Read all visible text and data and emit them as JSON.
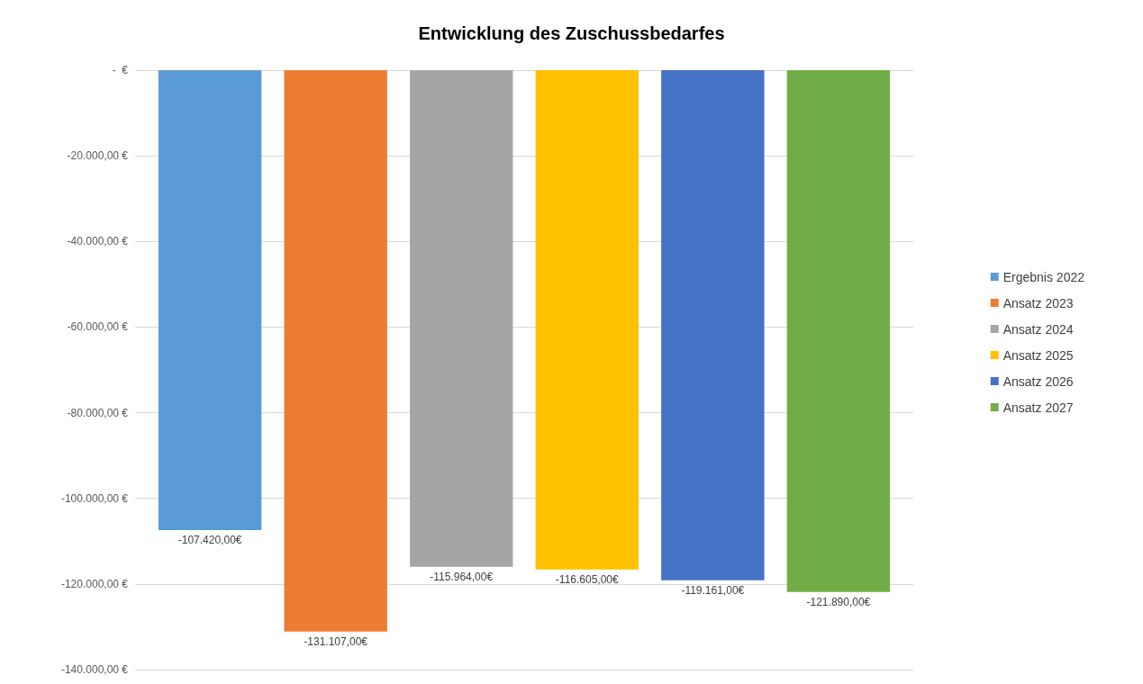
{
  "chart_data": {
    "type": "bar",
    "title": "Entwicklung des Zuschussbedarfes",
    "categories": [
      null
    ],
    "series": [
      {
        "name": "Ergebnis 2022",
        "color": "#5b9bd5",
        "values": [
          -107420
        ],
        "value_labels": [
          "-107.420,00€"
        ]
      },
      {
        "name": "Ansatz 2023",
        "color": "#ed7d31",
        "values": [
          -131107
        ],
        "value_labels": [
          "-131.107,00€"
        ]
      },
      {
        "name": "Ansatz 2024",
        "color": "#a5a5a5",
        "values": [
          -115964
        ],
        "value_labels": [
          "-115.964,00€"
        ]
      },
      {
        "name": "Ansatz 2025",
        "color": "#ffc000",
        "values": [
          -116605
        ],
        "value_labels": [
          "-116.605,00€"
        ]
      },
      {
        "name": "Ansatz 2026",
        "color": "#4472c4",
        "values": [
          -119161
        ],
        "value_labels": [
          "-119.161,00€"
        ]
      },
      {
        "name": "Ansatz 2027",
        "color": "#70ad47",
        "values": [
          -121890
        ],
        "value_labels": [
          "-121.890,00€"
        ]
      }
    ],
    "ylim": [
      -140000,
      0
    ],
    "yticks": [
      {
        "value": -140000,
        "label": "-140.000,00 €"
      },
      {
        "value": -120000,
        "label": "-120.000,00 €"
      },
      {
        "value": -100000,
        "label": "-100.000,00 €"
      },
      {
        "value": -80000,
        "label": "-80.000,00 €"
      },
      {
        "value": -60000,
        "label": "-60.000,00 €"
      },
      {
        "value": -40000,
        "label": "-40.000,00 €"
      },
      {
        "value": -20000,
        "label": "-20.000,00 €"
      },
      {
        "value": 0,
        "label": "-  €"
      }
    ],
    "grid": "y",
    "legend": "right",
    "tick_labels": "y"
  }
}
